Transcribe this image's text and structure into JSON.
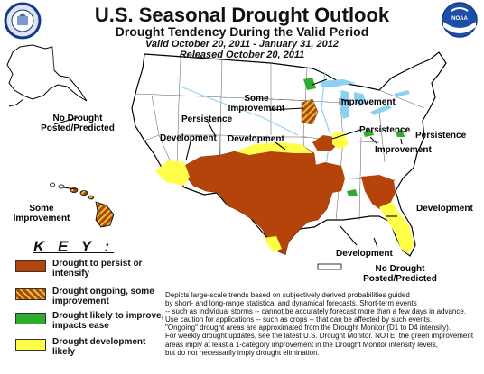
{
  "header": {
    "title": "U.S. Seasonal Drought Outlook",
    "subtitle": "Drought Tendency During the Valid Period",
    "valid": "Valid October 20, 2011 - January 31, 2012",
    "released": "Released October 20, 2011"
  },
  "map_labels": {
    "no_drought_ak_1": "No Drought",
    "no_drought_ak_2": "Posted/Predicted",
    "hi_1": "Some",
    "hi_2": "Improvement",
    "development_nw": "Development",
    "persistence_w": "Persistence",
    "some_improvement_1": "Some",
    "some_improvement_2": "Improvement",
    "development_c": "Development",
    "improvement_ne": "Improvement",
    "persistence_ne": "Persistence",
    "persistence_e": "Persistence",
    "improvement_e": "Improvement",
    "development_se": "Development",
    "development_s": "Development",
    "no_drought_pr_1": "No Drought",
    "no_drought_pr_2": "Posted/Predicted"
  },
  "key": {
    "heading": "K E Y :",
    "items": [
      {
        "line1": "Drought to persist or",
        "line2": "intensify",
        "color": "#b5440a"
      },
      {
        "line1": "Drought ongoing, some",
        "line2": "improvement",
        "color": "#b5440a"
      },
      {
        "line1": "Drought likely to improve,",
        "line2": "impacts ease",
        "color": "#2eac2e"
      },
      {
        "line1": "Drought development",
        "line2": "likely",
        "color": "#ffff4a"
      }
    ]
  },
  "notes": [
    "Depicts large-scale trends based on subjectively derived probabilities guided",
    "by short- and long-range statistical and dynamical forecasts. Short-term events",
    "-- such as individual storms -- cannot be accurately forecast more than a few days in advance.",
    "Use caution for applications -- such as crops -- that can be affected by such events.",
    "\"Ongoing\" drought areas are approximated from the Drought Monitor (D1 to D4 intensity).",
    "For weekly drought updates, see the latest U.S. Drought Monitor. NOTE: the green improvement",
    "areas imply at least a 1-category improvement in the Drought Monitor intensity levels,",
    "but do not necessarily imply drought elimination."
  ],
  "logos": {
    "left": "USDA Department of Agriculture seal",
    "right": "NOAA"
  }
}
